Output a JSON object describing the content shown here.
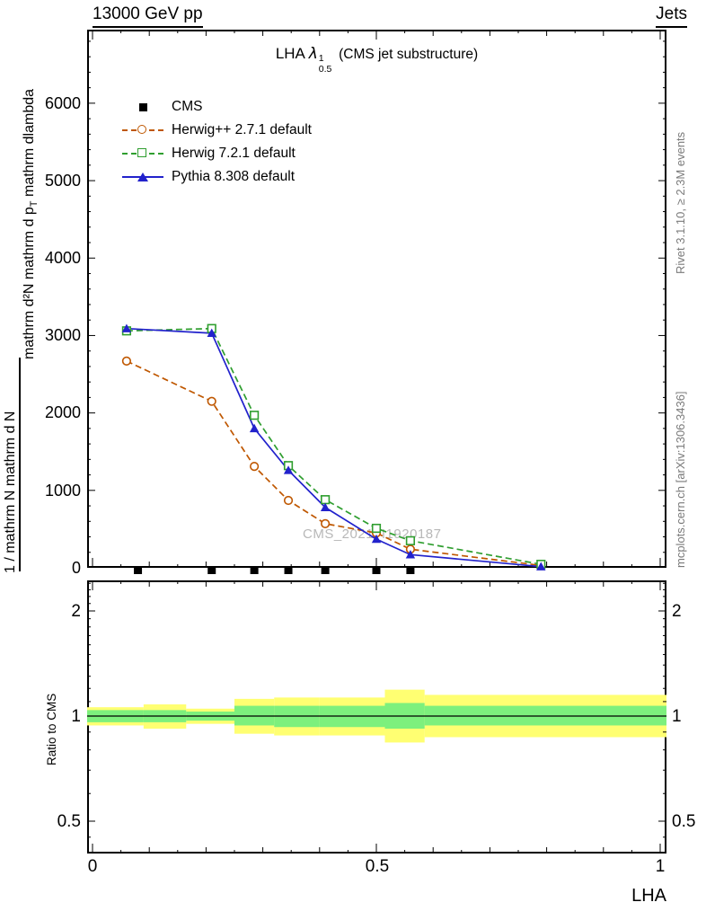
{
  "header": {
    "left": "13000 GeV pp",
    "right": "Jets"
  },
  "title": {
    "prefix": "LHA",
    "symbol": "λ",
    "sup": "1",
    "sub": "0.5",
    "suffix": "(CMS jet substructure)"
  },
  "watermark": "CMS_2021_I1920187",
  "side_notes": {
    "top_right": "Rivet 3.1.10, ≥ 2.3M events",
    "bottom_right": "mcplots.cern.ch [arXiv:1306.3436]"
  },
  "y_axis": {
    "label_inner_pre": "mathrm d²N mathrm d p",
    "label_inner_sub": "T",
    "label_inner_post": " mathrm dlambda",
    "label_outer": "1 / mathrm N mathrm d N",
    "yticks": [
      "6000",
      "5000",
      "4000",
      "3000",
      "2000",
      "1000",
      "0"
    ]
  },
  "ratio_axis": {
    "label": "Ratio to CMS",
    "ticks": [
      "2",
      "1",
      "0.5"
    ]
  },
  "x_axis": {
    "ticks": [
      "0",
      "0.5",
      "1"
    ],
    "label": "LHA"
  },
  "legend": [
    {
      "label": "CMS",
      "marker": "square-filled",
      "color": "#000000",
      "line": "none"
    },
    {
      "label": "Herwig++ 2.7.1 default",
      "marker": "circle-open",
      "color": "#bf5700",
      "line": "dashed"
    },
    {
      "label": "Herwig 7.2.1 default",
      "marker": "square-open",
      "color": "#2f9e2f",
      "line": "dashed"
    },
    {
      "label": "Pythia 8.308 default",
      "marker": "triangle-filled",
      "color": "#2222cc",
      "line": "solid"
    }
  ],
  "colors": {
    "herwigpp": "#bf5700",
    "herwig7": "#2f9e2f",
    "pythia": "#2222cc",
    "band_yellow": "#ffff72",
    "band_green": "#7df07d",
    "frame": "#000000",
    "note_gray": "#7a7a7a",
    "watermark_gray": "#b8b8b8"
  },
  "chart_data": [
    {
      "type": "line",
      "title": "LHA λ^1_0.5 (CMS jet substructure)",
      "xlabel": "LHA",
      "ylabel": "1 / mathrm N mathrm d²N / mathrm d p_T mathrm dlambda",
      "xlim": [
        0,
        1
      ],
      "ylim": [
        0,
        6950
      ],
      "grid": false,
      "legend_position": "top-left",
      "x": [
        0.06,
        0.21,
        0.285,
        0.345,
        0.41,
        0.5,
        0.56,
        0.79
      ],
      "series": [
        {
          "name": "Herwig++ 2.7.1 default",
          "values": [
            2670,
            2150,
            1310,
            870,
            570,
            450,
            240,
            30
          ]
        },
        {
          "name": "Herwig 7.2.1 default",
          "values": [
            3060,
            3090,
            1970,
            1320,
            880,
            510,
            350,
            45
          ]
        },
        {
          "name": "Pythia 8.308 default",
          "values": [
            3090,
            3030,
            1800,
            1260,
            780,
            370,
            170,
            15
          ]
        }
      ],
      "cms_points": {
        "x": [
          0.08,
          0.21,
          0.285,
          0.345,
          0.41,
          0.5,
          0.56
        ],
        "values": [
          0,
          0,
          0,
          0,
          0,
          0,
          0
        ]
      }
    },
    {
      "type": "area",
      "title": "Ratio to CMS",
      "yscale": "log",
      "ylim": [
        0.41,
        2.45
      ],
      "yticks": [
        0.5,
        1,
        2
      ],
      "unity": 1,
      "bands": [
        {
          "x0": 0.0,
          "x1": 0.09,
          "yellow": [
            0.94,
            1.06
          ],
          "green": [
            0.96,
            1.04
          ]
        },
        {
          "x0": 0.09,
          "x1": 0.165,
          "yellow": [
            0.92,
            1.08
          ],
          "green": [
            0.96,
            1.04
          ]
        },
        {
          "x0": 0.165,
          "x1": 0.25,
          "yellow": [
            0.95,
            1.05
          ],
          "green": [
            0.97,
            1.03
          ]
        },
        {
          "x0": 0.25,
          "x1": 0.32,
          "yellow": [
            0.89,
            1.12
          ],
          "green": [
            0.94,
            1.07
          ]
        },
        {
          "x0": 0.32,
          "x1": 0.4,
          "yellow": [
            0.88,
            1.13
          ],
          "green": [
            0.93,
            1.07
          ]
        },
        {
          "x0": 0.4,
          "x1": 0.515,
          "yellow": [
            0.88,
            1.13
          ],
          "green": [
            0.93,
            1.07
          ]
        },
        {
          "x0": 0.515,
          "x1": 0.585,
          "yellow": [
            0.84,
            1.19
          ],
          "green": [
            0.92,
            1.09
          ]
        },
        {
          "x0": 0.585,
          "x1": 1.0,
          "yellow": [
            0.87,
            1.15
          ],
          "green": [
            0.94,
            1.07
          ]
        }
      ]
    }
  ]
}
